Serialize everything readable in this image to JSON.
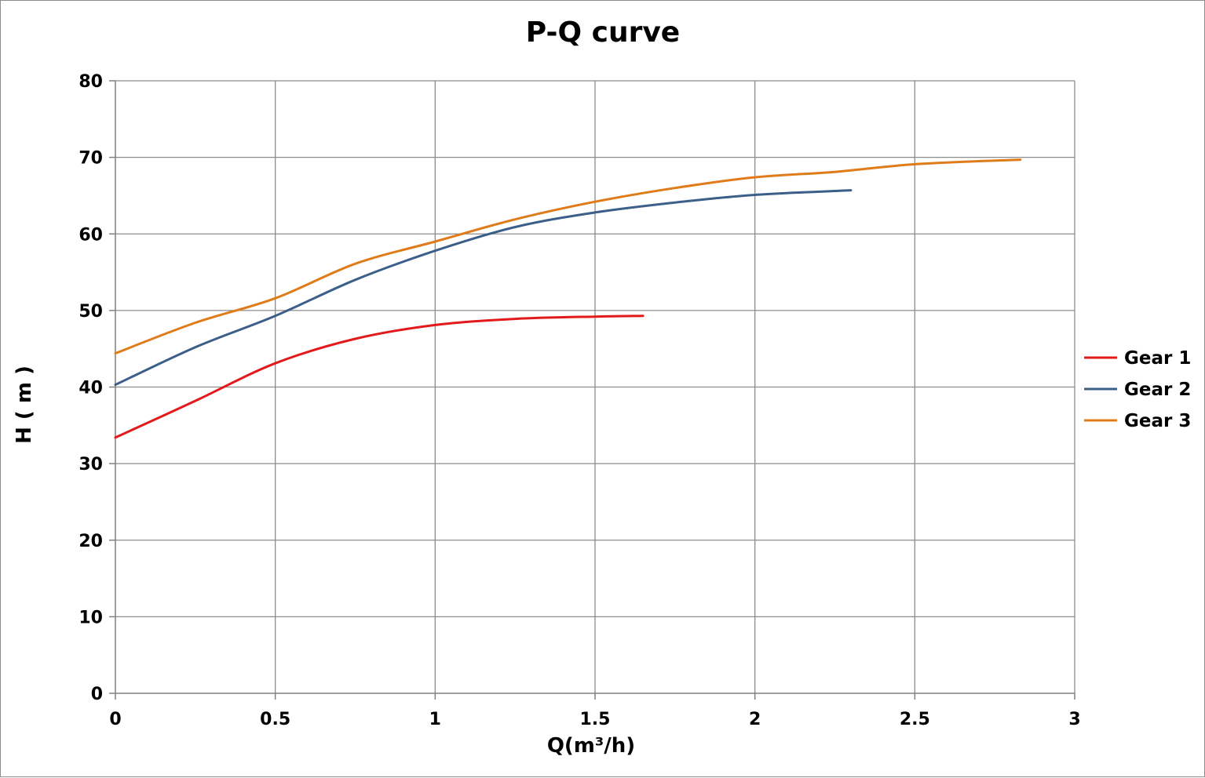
{
  "chart_data": {
    "type": "line",
    "title": "P-Q  curve",
    "xlabel": "Q(m³/h)",
    "ylabel": "H ( m )",
    "xlim": [
      0,
      3
    ],
    "ylim": [
      0,
      80
    ],
    "x_ticks": [
      "0",
      "0.5",
      "1",
      "1.5",
      "2",
      "2.5",
      "3"
    ],
    "y_ticks": [
      "0",
      "10",
      "20",
      "30",
      "40",
      "50",
      "60",
      "70",
      "80"
    ],
    "grid": true,
    "legend_position": "right",
    "series": [
      {
        "name": "Gear 1",
        "color": "#e31a1c",
        "points": [
          [
            0,
            33.4
          ],
          [
            0.25,
            38.2
          ],
          [
            0.5,
            43.1
          ],
          [
            0.75,
            46.3
          ],
          [
            1.0,
            48.1
          ],
          [
            1.25,
            48.9
          ],
          [
            1.5,
            49.2
          ],
          [
            1.65,
            49.3
          ]
        ]
      },
      {
        "name": "Gear 2",
        "color": "#3c5f8a",
        "points": [
          [
            0,
            40.3
          ],
          [
            0.25,
            45.2
          ],
          [
            0.5,
            49.3
          ],
          [
            0.75,
            54.0
          ],
          [
            1.0,
            57.8
          ],
          [
            1.25,
            60.9
          ],
          [
            1.5,
            62.8
          ],
          [
            1.75,
            64.1
          ],
          [
            2.0,
            65.1
          ],
          [
            2.3,
            65.7
          ]
        ]
      },
      {
        "name": "Gear 3",
        "color": "#e07b1a",
        "points": [
          [
            0,
            44.4
          ],
          [
            0.25,
            48.4
          ],
          [
            0.5,
            51.6
          ],
          [
            0.75,
            56.1
          ],
          [
            1.0,
            59.0
          ],
          [
            1.25,
            61.9
          ],
          [
            1.5,
            64.2
          ],
          [
            1.75,
            66.0
          ],
          [
            2.0,
            67.4
          ],
          [
            2.25,
            68.1
          ],
          [
            2.5,
            69.1
          ],
          [
            2.83,
            69.7
          ]
        ]
      }
    ]
  }
}
